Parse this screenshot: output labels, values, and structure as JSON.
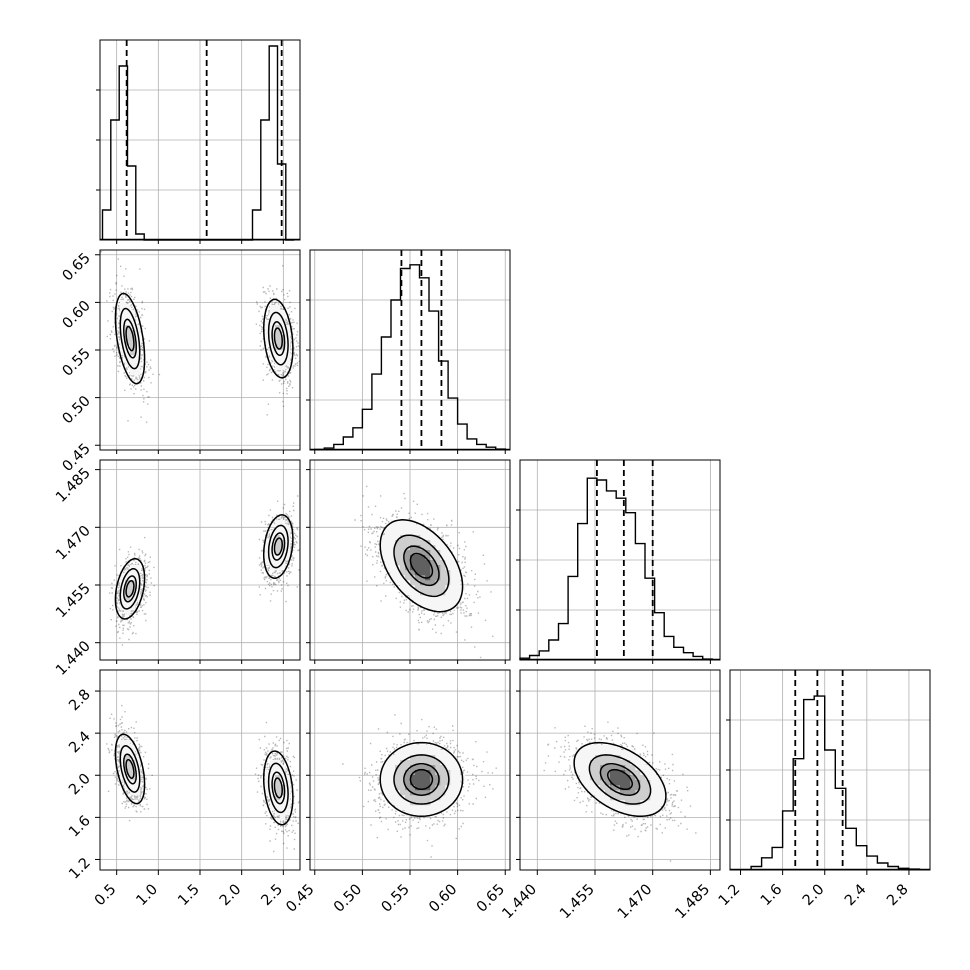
{
  "chart_data": {
    "type": "corner",
    "title": "",
    "parameters": [
      {
        "range": [
          0.3,
          2.7
        ],
        "ticks": [
          0.5,
          1.0,
          1.5,
          2.0,
          2.5
        ],
        "tick_labels": [
          "0.5",
          "1.0",
          "1.5",
          "2.0",
          "2.5"
        ],
        "quantiles": [
          0.62,
          1.58,
          2.48
        ],
        "histogram": {
          "bin_edges": [
            0.33,
            0.43,
            0.53,
            0.63,
            0.73,
            0.83,
            0.93,
            1.03,
            2.13,
            2.23,
            2.33,
            2.43,
            2.53,
            2.63
          ],
          "counts": [
            0.15,
            0.6,
            0.87,
            0.37,
            0.03,
            0.0,
            0.0,
            0.0,
            0.15,
            0.6,
            0.97,
            0.38,
            0.0
          ],
          "ylim": [
            0,
            1
          ]
        }
      },
      {
        "range": [
          0.445,
          0.655
        ],
        "ticks": [
          0.45,
          0.5,
          0.55,
          0.6,
          0.65
        ],
        "tick_labels": [
          "0.45",
          "0.50",
          "0.55",
          "0.60",
          "0.65"
        ],
        "quantiles": [
          0.541,
          0.562,
          0.583
        ],
        "histogram": {
          "bin_edges": [
            0.45,
            0.46,
            0.47,
            0.48,
            0.49,
            0.5,
            0.51,
            0.52,
            0.53,
            0.54,
            0.55,
            0.56,
            0.57,
            0.58,
            0.59,
            0.6,
            0.61,
            0.62,
            0.63,
            0.64,
            0.65
          ],
          "counts": [
            0.003,
            0.01,
            0.03,
            0.07,
            0.12,
            0.22,
            0.41,
            0.61,
            0.81,
            0.98,
            1.0,
            0.93,
            0.75,
            0.48,
            0.28,
            0.14,
            0.06,
            0.03,
            0.015,
            0.005
          ],
          "ylim": [
            0,
            1.08
          ]
        }
      },
      {
        "range": [
          1.4355,
          1.4875
        ],
        "ticks": [
          1.44,
          1.455,
          1.47,
          1.485
        ],
        "tick_labels": [
          "1.440",
          "1.455",
          "1.470",
          "1.485"
        ],
        "quantiles": [
          1.4555,
          1.4625,
          1.47
        ],
        "histogram": {
          "bin_edges": [
            1.4355,
            1.438,
            1.4405,
            1.443,
            1.4455,
            1.448,
            1.4505,
            1.453,
            1.4555,
            1.458,
            1.4605,
            1.463,
            1.4655,
            1.468,
            1.4705,
            1.473,
            1.4755,
            1.478,
            1.4805,
            1.483,
            1.4855
          ],
          "counts": [
            0.01,
            0.025,
            0.05,
            0.11,
            0.2,
            0.46,
            0.75,
            1.0,
            0.99,
            0.93,
            0.89,
            0.81,
            0.64,
            0.45,
            0.26,
            0.13,
            0.07,
            0.04,
            0.02,
            0.005
          ],
          "ylim": [
            0,
            1.1
          ]
        }
      },
      {
        "range": [
          1.1,
          3.0
        ],
        "ticks": [
          1.2,
          1.6,
          2.0,
          2.4,
          2.8
        ],
        "tick_labels": [
          "1.2",
          "1.6",
          "2.0",
          "2.4",
          "2.8"
        ],
        "quantiles": [
          1.72,
          1.93,
          2.17
        ],
        "histogram": {
          "bin_edges": [
            1.3,
            1.4,
            1.5,
            1.6,
            1.7,
            1.8,
            1.9,
            2.0,
            2.1,
            2.2,
            2.3,
            2.4,
            2.5,
            2.6,
            2.7,
            2.8,
            2.9
          ],
          "counts": [
            0.02,
            0.07,
            0.13,
            0.34,
            0.64,
            0.98,
            1.0,
            0.69,
            0.47,
            0.24,
            0.14,
            0.08,
            0.04,
            0.02,
            0.01,
            0.005
          ],
          "ylim": [
            0,
            1.15
          ]
        }
      }
    ],
    "pairs": [
      {
        "x": 0,
        "y": 1,
        "modes": [
          {
            "mean": [
              0.66,
              0.562
            ],
            "sd": [
              0.085,
              0.023
            ],
            "rho": -0.45,
            "weight": 0.5
          },
          {
            "mean": [
              2.44,
              0.562
            ],
            "sd": [
              0.085,
              0.02
            ],
            "rho": -0.25,
            "weight": 0.5
          }
        ]
      },
      {
        "x": 0,
        "y": 2,
        "modes": [
          {
            "mean": [
              0.66,
              1.454
            ],
            "sd": [
              0.085,
              0.0038
            ],
            "rho": 0.35,
            "weight": 0.5
          },
          {
            "mean": [
              2.44,
              1.465
            ],
            "sd": [
              0.085,
              0.004
            ],
            "rho": 0.25,
            "weight": 0.5
          }
        ]
      },
      {
        "x": 0,
        "y": 3,
        "modes": [
          {
            "mean": [
              0.66,
              2.06
            ],
            "sd": [
              0.085,
              0.16
            ],
            "rho": -0.45,
            "weight": 0.5
          },
          {
            "mean": [
              2.44,
              1.88
            ],
            "sd": [
              0.085,
              0.17
            ],
            "rho": -0.25,
            "weight": 0.5
          }
        ]
      },
      {
        "x": 1,
        "y": 2,
        "modes": [
          {
            "mean": [
              0.562,
              1.46
            ],
            "sd": [
              0.021,
              0.0058
            ],
            "rho": -0.45,
            "weight": 1.0
          }
        ]
      },
      {
        "x": 1,
        "y": 3,
        "modes": [
          {
            "mean": [
              0.562,
              1.96
            ],
            "sd": [
              0.021,
              0.17
            ],
            "rho": 0.0,
            "weight": 1.0
          }
        ]
      },
      {
        "x": 2,
        "y": 3,
        "modes": [
          {
            "mean": [
              1.4615,
              1.96
            ],
            "sd": [
              0.0058,
              0.17
            ],
            "rho": -0.45,
            "weight": 1.0
          }
        ]
      }
    ],
    "contour_levels": [
      0.12,
      0.39,
      0.68,
      0.86
    ],
    "contour_fill_colors": [
      "#f6f6f6",
      "#cecece",
      "#9c9c9c",
      "#606060"
    ],
    "grid": true,
    "legend": "none"
  }
}
